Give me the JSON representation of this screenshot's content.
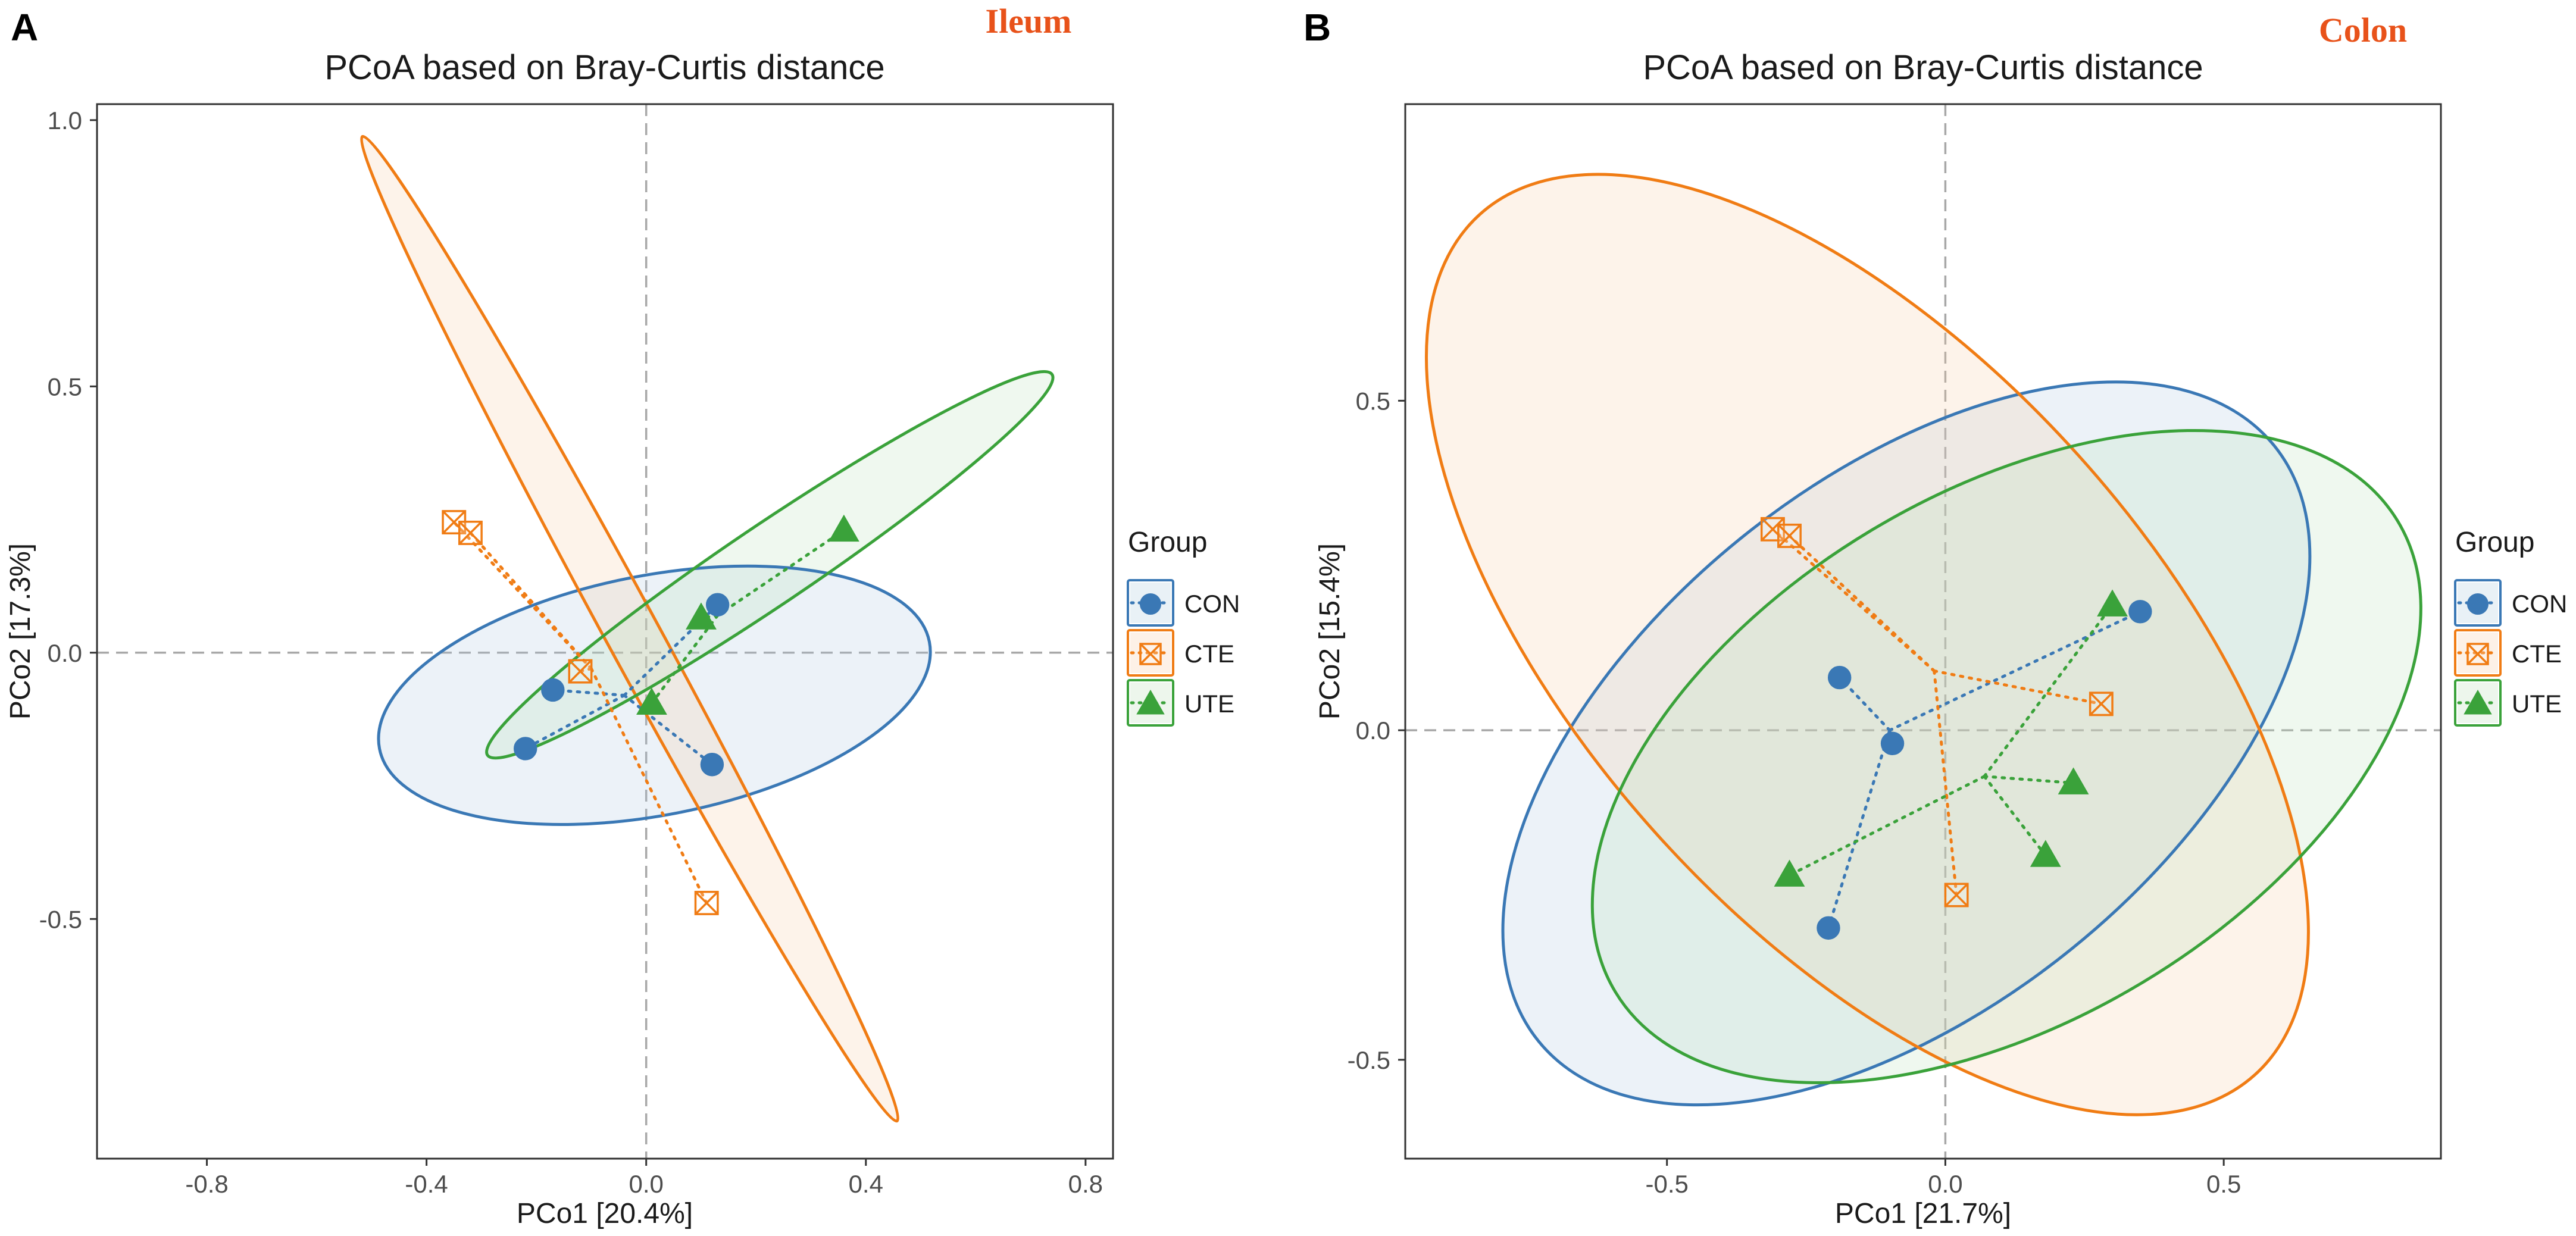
{
  "colors": {
    "CON": "#3a78b5",
    "CTE": "#f07c14",
    "UTE": "#3aa23a",
    "CON_fill": "#a9c6dd",
    "CTE_fill": "#f7c9a0",
    "UTE_fill": "#b8ddb4",
    "tissue_label": "#e8521a",
    "refline": "#a8a8a8"
  },
  "legend": {
    "title": "Group",
    "items": [
      {
        "group": "CON",
        "label": "CON",
        "marker": "circle"
      },
      {
        "group": "CTE",
        "label": "CTE",
        "marker": "boxed-x"
      },
      {
        "group": "UTE",
        "label": "UTE",
        "marker": "triangle"
      }
    ]
  },
  "chart_data": [
    {
      "type": "scatter",
      "panel_letter": "A",
      "tissue": "Ileum",
      "title": "PCoA based on Bray-Curtis distance",
      "xlabel": "PCo1 [20.4%]",
      "ylabel": "PCo2 [17.3%]",
      "xlim": [
        -1.0,
        0.85
      ],
      "ylim": [
        -0.95,
        1.03
      ],
      "xticks": [
        -0.8,
        -0.4,
        0.0,
        0.4,
        0.8
      ],
      "xtick_labels": [
        "-0.8",
        "-0.4",
        "0.0",
        "0.4",
        "0.8"
      ],
      "yticks": [
        -0.5,
        0.0,
        0.5,
        1.0
      ],
      "ytick_labels": [
        "-0.5",
        "0.0",
        "0.5",
        "1.0"
      ],
      "reference_lines": {
        "x": 0,
        "y": 0
      },
      "series": [
        {
          "name": "CON",
          "centroid": [
            -0.04,
            -0.08
          ],
          "points": [
            [
              -0.17,
              -0.07
            ],
            [
              -0.22,
              -0.18
            ],
            [
              0.13,
              0.09
            ],
            [
              0.12,
              -0.21
            ]
          ],
          "ellipse": {
            "cx": 0.015,
            "cy": -0.08,
            "rx": 0.51,
            "ry": 0.225,
            "angle_deg": 11
          }
        },
        {
          "name": "CTE",
          "centroid": [
            -0.1,
            -0.03
          ],
          "points": [
            [
              -0.35,
              0.245
            ],
            [
              -0.32,
              0.225
            ],
            [
              -0.12,
              -0.035
            ],
            [
              0.11,
              -0.47
            ]
          ],
          "ellipse": {
            "cx": -0.03,
            "cy": 0.045,
            "rx": 1.02,
            "ry": 0.05,
            "angle_deg": -61.5
          }
        },
        {
          "name": "UTE",
          "centroid": [
            0.13,
            0.07
          ],
          "points": [
            [
              0.01,
              -0.095
            ],
            [
              0.1,
              0.065
            ],
            [
              0.36,
              0.23
            ]
          ],
          "ellipse": {
            "cx": 0.225,
            "cy": 0.165,
            "rx": 0.62,
            "ry": 0.075,
            "angle_deg": 34
          }
        }
      ]
    },
    {
      "type": "scatter",
      "panel_letter": "B",
      "tissue": "Colon",
      "title": "PCoA based on Bray-Curtis distance",
      "xlabel": "PCo1 [21.7%]",
      "ylabel": "PCo2 [15.4%]",
      "xlim": [
        -0.97,
        0.89
      ],
      "ylim": [
        -0.65,
        0.95
      ],
      "xticks": [
        -0.5,
        0.0,
        0.5
      ],
      "xtick_labels": [
        "-0.5",
        "0.0",
        "0.5"
      ],
      "yticks": [
        -0.5,
        0.0,
        0.5
      ],
      "ytick_labels": [
        "-0.5",
        "0.0",
        "0.5"
      ],
      "reference_lines": {
        "x": 0,
        "y": 0
      },
      "series": [
        {
          "name": "CON",
          "centroid": [
            -0.1,
            0.0
          ],
          "points": [
            [
              -0.19,
              0.08
            ],
            [
              -0.095,
              -0.02
            ],
            [
              0.35,
              0.18
            ],
            [
              -0.21,
              -0.3
            ]
          ],
          "ellipse": {
            "cx": -0.07,
            "cy": -0.02,
            "rx": 0.85,
            "ry": 0.4,
            "angle_deg": 39
          }
        },
        {
          "name": "CTE",
          "centroid": [
            -0.02,
            0.09
          ],
          "points": [
            [
              -0.31,
              0.305
            ],
            [
              -0.28,
              0.295
            ],
            [
              0.28,
              0.04
            ],
            [
              0.02,
              -0.25
            ]
          ],
          "ellipse": {
            "cx": -0.14,
            "cy": 0.13,
            "rx": 1.04,
            "ry": 0.43,
            "angle_deg": -48
          }
        },
        {
          "name": "UTE",
          "centroid": [
            0.07,
            -0.07
          ],
          "points": [
            [
              0.3,
              0.19
            ],
            [
              0.23,
              -0.08
            ],
            [
              0.18,
              -0.19
            ],
            [
              -0.28,
              -0.22
            ]
          ],
          "ellipse": {
            "cx": 0.11,
            "cy": -0.04,
            "rx": 0.82,
            "ry": 0.4,
            "angle_deg": 31
          }
        }
      ]
    }
  ]
}
